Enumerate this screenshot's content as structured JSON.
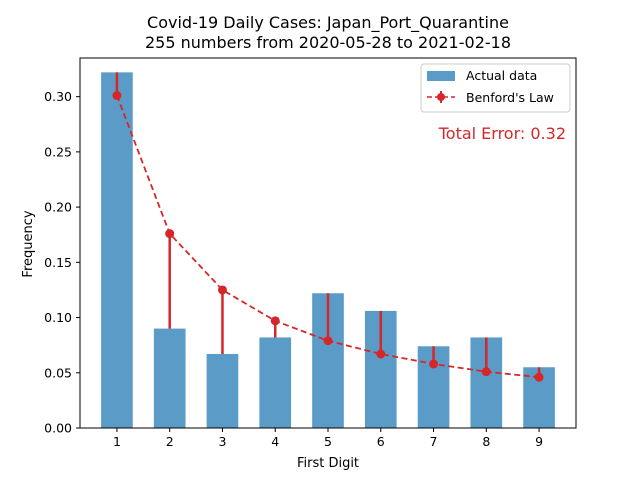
{
  "chart_data": {
    "type": "bar",
    "title": "Covid-19 Daily Cases: Japan_Port_Quarantine",
    "subtitle": "255 numbers from 2020-05-28 to 2021-02-18",
    "xlabel": "First Digit",
    "ylabel": "Frequency",
    "categories": [
      "1",
      "2",
      "3",
      "4",
      "5",
      "6",
      "7",
      "8",
      "9"
    ],
    "ylim": [
      0,
      0.335
    ],
    "yticks": [
      0.0,
      0.05,
      0.1,
      0.15,
      0.2,
      0.25,
      0.3
    ],
    "ytick_labels": [
      "0.00",
      "0.05",
      "0.10",
      "0.15",
      "0.20",
      "0.25",
      "0.30"
    ],
    "grid": false,
    "legend_position": "top-right",
    "series": [
      {
        "name": "Actual data",
        "type": "bar",
        "color": "#5b9bc8",
        "values": [
          0.322,
          0.09,
          0.067,
          0.082,
          0.122,
          0.106,
          0.074,
          0.082,
          0.055
        ]
      },
      {
        "name": "Benford's Law",
        "type": "line",
        "color": "#d62728",
        "values": [
          0.301,
          0.176,
          0.125,
          0.097,
          0.079,
          0.067,
          0.058,
          0.051,
          0.046
        ]
      }
    ],
    "annotation": {
      "text": "Total Error: 0.32",
      "color": "#d62728"
    }
  }
}
